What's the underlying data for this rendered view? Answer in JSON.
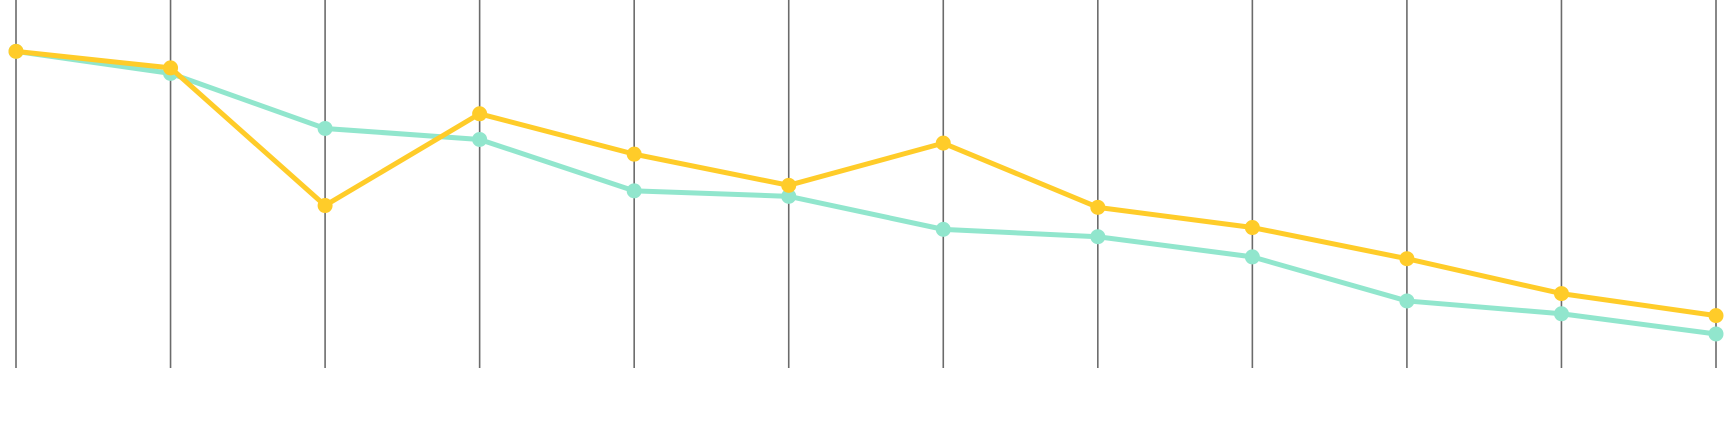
{
  "chart_data": {
    "type": "line",
    "title": "",
    "xlabel": "",
    "ylabel": "",
    "x": [
      1,
      2,
      3,
      4,
      5,
      6,
      7,
      8,
      9,
      10,
      11,
      12
    ],
    "ylim": [
      0,
      100
    ],
    "grid": {
      "vertical": true,
      "horizontal": false
    },
    "legend": "none",
    "series": [
      {
        "color": "#91e6cd",
        "values": [
          86,
          80,
          65,
          62,
          48,
          46.5,
          37.5,
          35.5,
          30,
          18,
          14.5,
          9
        ]
      },
      {
        "color": "#ffcc29",
        "values": [
          86,
          81.5,
          44,
          69,
          58,
          49.5,
          61,
          43.5,
          38,
          29.5,
          20,
          14
        ]
      }
    ]
  }
}
